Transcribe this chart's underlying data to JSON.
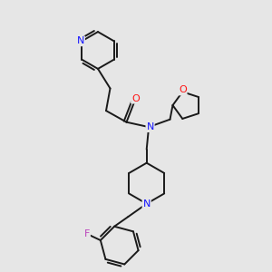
{
  "bg_color": "#e6e6e6",
  "bond_color": "#1a1a1a",
  "bond_width": 1.4,
  "N_color": "#1414ff",
  "O_color": "#ff1414",
  "F_color": "#bb44bb",
  "figsize": [
    3.0,
    3.0
  ],
  "dpi": 100,
  "xlim": [
    0,
    10
  ],
  "ylim": [
    0,
    10
  ]
}
